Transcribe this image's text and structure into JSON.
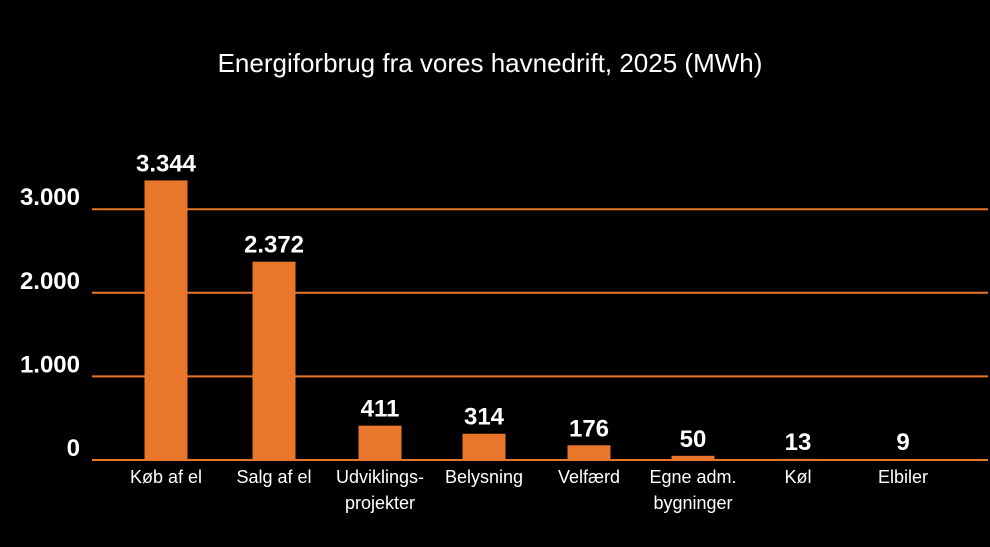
{
  "chart_data": {
    "type": "bar",
    "title": "Energiforbrug fra vores havnedrift, 2025 (MWh)",
    "xlabel": "",
    "ylabel": "",
    "categories": [
      [
        "Køb af el"
      ],
      [
        "Salg af el"
      ],
      [
        "Udviklings-",
        "projekter"
      ],
      [
        "Belysning"
      ],
      [
        "Velfærd"
      ],
      [
        "Egne adm.",
        "bygninger"
      ],
      [
        "Køl"
      ],
      [
        "Elbiler"
      ]
    ],
    "values": [
      3344,
      2372,
      411,
      314,
      176,
      50,
      13,
      9
    ],
    "value_labels": [
      "3.344",
      "2.372",
      "411",
      "314",
      "176",
      "50",
      "13",
      "9"
    ],
    "ylim": [
      0,
      3400
    ],
    "yticks": [
      0,
      1000,
      2000,
      3000
    ],
    "ytick_labels": [
      "0",
      "1.000",
      "2.000",
      "3.000"
    ],
    "grid": true,
    "legend": "none",
    "colors": {
      "background": "#000000",
      "bar": "#E8762B",
      "grid": "#E8762B",
      "text": "#ffffff"
    }
  }
}
